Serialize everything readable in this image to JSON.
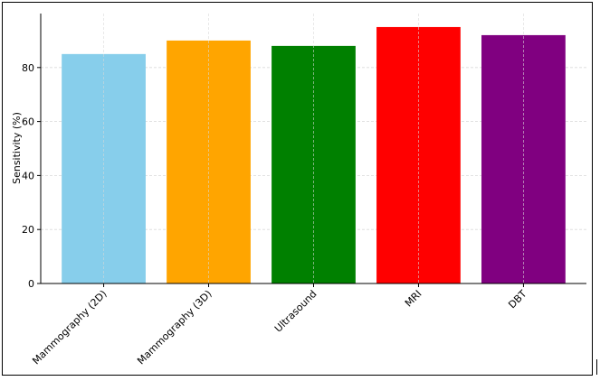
{
  "chart_data": {
    "type": "bar",
    "categories": [
      "Mammography (2D)",
      "Mammography (3D)",
      "Ultrasound",
      "MRI",
      "DBT"
    ],
    "values": [
      85,
      90,
      88,
      95,
      92
    ],
    "colors": [
      "#87ceeb",
      "#ffa500",
      "#008000",
      "#ff0000",
      "#800080"
    ],
    "title": "",
    "xlabel": "",
    "ylabel": "Sensitivity (%)",
    "ylim": [
      0,
      100
    ],
    "yticks": [
      0,
      20,
      40,
      60,
      80
    ],
    "grid": true,
    "grid_color": "#d9d9d9"
  }
}
